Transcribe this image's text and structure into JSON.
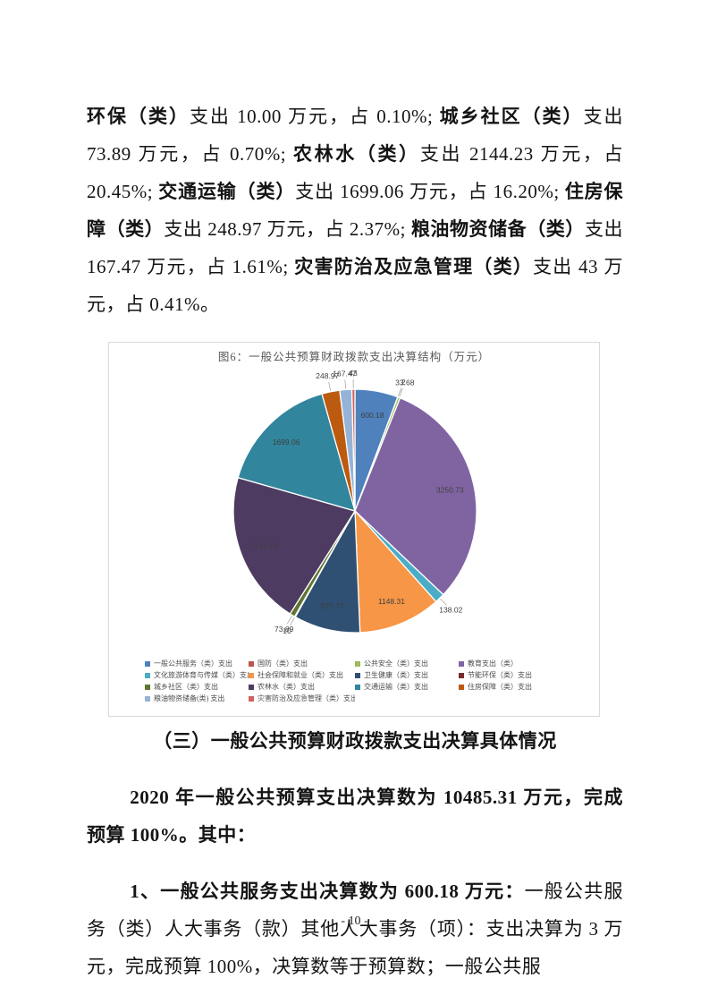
{
  "page": {
    "number": "- 10 -"
  },
  "p1": {
    "segs": [
      {
        "b": 1,
        "t": "环保（类）"
      },
      {
        "b": 0,
        "t": "支出 10.00 万元，占 0.10%; "
      },
      {
        "b": 1,
        "t": "城乡社区（类）"
      },
      {
        "b": 0,
        "t": "支出 73.89 万元，占 0.70%; "
      },
      {
        "b": 1,
        "t": "农林水（类）"
      },
      {
        "b": 0,
        "t": "支出 2144.23 万元，占 20.45%; "
      },
      {
        "b": 1,
        "t": "交通运输（类）"
      },
      {
        "b": 0,
        "t": "支出 1699.06 万元，占 16.20%; "
      },
      {
        "b": 1,
        "t": "住房保障（类）"
      },
      {
        "b": 0,
        "t": "支出 248.97 万元，占 2.37%; "
      },
      {
        "b": 1,
        "t": "粮油物资储备（类）"
      },
      {
        "b": 0,
        "t": "支出 167.47 万元，占 1.61%; "
      },
      {
        "b": 1,
        "t": "灾害防治及应急管理（类）"
      },
      {
        "b": 0,
        "t": "支出 43 万元，占 0.41%。"
      }
    ]
  },
  "section_heading": "（三）一般公共预算财政拨款支出决算具体情况",
  "p2": {
    "text": "2020 年一般公共预算支出决算数为 10485.31 万元，完成预算 100%。其中："
  },
  "p3": {
    "lead": "1、一般公共服务支出决算数为 600.18 万元：",
    "rest": "一般公共服务（类）人大事务（款）其他人大事务（项）：支出决算为 3 万元，完成预算 100%，决算数等于预算数；一般公共服"
  },
  "chart_data": {
    "type": "pie",
    "title": "图6：一般公共预算财政拨款支出决算结构（万元）",
    "unit": "万元",
    "total": 10485.31,
    "start_angle_deg": 0,
    "direction": "clockwise",
    "legend_position": "bottom",
    "slices": [
      {
        "label": "一般公共服务（类）支出",
        "value": 600.18,
        "display": "600.18",
        "color": "#4F81BD"
      },
      {
        "label": "国防（类）支出",
        "value": 2.0,
        "display": "2",
        "color": "#C0504D"
      },
      {
        "label": "公共安全（类）支出",
        "value": 33.68,
        "display": "33.68",
        "color": "#9BBB59"
      },
      {
        "label": "教育支出（类）",
        "value": 3250.73,
        "display": "3250.73",
        "color": "#8064A2"
      },
      {
        "label": "文化旅游体育与传媒（类）支出",
        "value": 138.02,
        "display": "138.02",
        "color": "#4BACC6"
      },
      {
        "label": "社会保障和就业（类）支出",
        "value": 1148.31,
        "display": "1148.31",
        "color": "#F79646"
      },
      {
        "label": "卫生健康（类）支出",
        "value": 925.77,
        "display": "925.77",
        "color": "#2F5073"
      },
      {
        "label": "节能环保（类）支出",
        "value": 10.0,
        "display": "10",
        "color": "#772C2A"
      },
      {
        "label": "城乡社区（类）支出",
        "value": 73.89,
        "display": "73.89",
        "color": "#5F7530"
      },
      {
        "label": "农林水（类）支出",
        "value": 2144.23,
        "display": "2144.23",
        "color": "#4E3B62"
      },
      {
        "label": "交通运输（类）支出",
        "value": 1699.06,
        "display": "1699.06",
        "color": "#31859C"
      },
      {
        "label": "住房保障（类）支出",
        "value": 248.97,
        "display": "248.97",
        "color": "#BC5A10"
      },
      {
        "label": "粮油物资储备(类) 支出",
        "value": 167.47,
        "display": "167.47",
        "color": "#95B3D7"
      },
      {
        "label": "灾害防治及应急管理（类）支出",
        "value": 43.0,
        "display": "43",
        "color": "#D2615C"
      }
    ]
  }
}
